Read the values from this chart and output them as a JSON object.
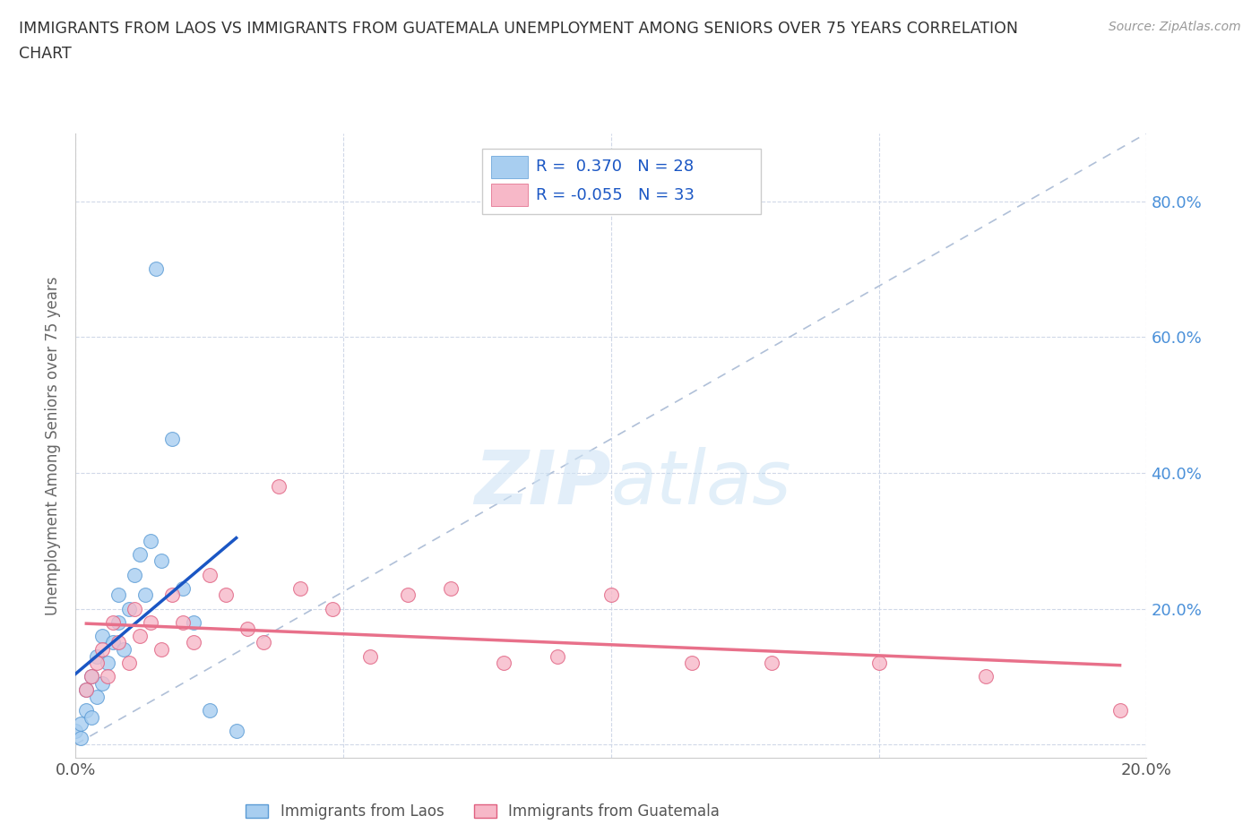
{
  "title_line1": "IMMIGRANTS FROM LAOS VS IMMIGRANTS FROM GUATEMALA UNEMPLOYMENT AMONG SENIORS OVER 75 YEARS CORRELATION",
  "title_line2": "CHART",
  "source": "Source: ZipAtlas.com",
  "ylabel": "Unemployment Among Seniors over 75 years",
  "xlim": [
    0.0,
    0.2
  ],
  "ylim": [
    -0.02,
    0.9
  ],
  "laos_color": "#a8cef0",
  "laos_color_dark": "#5b9bd5",
  "laos_line_color": "#1a56c4",
  "guatemala_color": "#f7b8c8",
  "guatemala_color_dark": "#e06080",
  "guatemala_line_color": "#e8708a",
  "laos_R": 0.37,
  "laos_N": 28,
  "guatemala_R": -0.055,
  "guatemala_N": 33,
  "laos_x": [
    0.0,
    0.001,
    0.001,
    0.002,
    0.002,
    0.003,
    0.003,
    0.004,
    0.004,
    0.005,
    0.005,
    0.006,
    0.007,
    0.008,
    0.008,
    0.009,
    0.01,
    0.011,
    0.012,
    0.013,
    0.014,
    0.015,
    0.016,
    0.018,
    0.02,
    0.022,
    0.025,
    0.03
  ],
  "laos_y": [
    0.02,
    0.01,
    0.03,
    0.05,
    0.08,
    0.04,
    0.1,
    0.07,
    0.13,
    0.09,
    0.16,
    0.12,
    0.15,
    0.18,
    0.22,
    0.14,
    0.2,
    0.25,
    0.28,
    0.22,
    0.3,
    0.7,
    0.27,
    0.45,
    0.23,
    0.18,
    0.05,
    0.02
  ],
  "guatemala_x": [
    0.002,
    0.003,
    0.004,
    0.005,
    0.006,
    0.007,
    0.008,
    0.01,
    0.011,
    0.012,
    0.014,
    0.016,
    0.018,
    0.02,
    0.022,
    0.025,
    0.028,
    0.032,
    0.035,
    0.038,
    0.042,
    0.048,
    0.055,
    0.062,
    0.07,
    0.08,
    0.09,
    0.1,
    0.115,
    0.13,
    0.15,
    0.17,
    0.195
  ],
  "guatemala_y": [
    0.08,
    0.1,
    0.12,
    0.14,
    0.1,
    0.18,
    0.15,
    0.12,
    0.2,
    0.16,
    0.18,
    0.14,
    0.22,
    0.18,
    0.15,
    0.25,
    0.22,
    0.17,
    0.15,
    0.38,
    0.23,
    0.2,
    0.13,
    0.22,
    0.23,
    0.12,
    0.13,
    0.22,
    0.12,
    0.12,
    0.12,
    0.1,
    0.05
  ],
  "watermark_zip": "ZIP",
  "watermark_atlas": "atlas",
  "background_color": "#ffffff",
  "grid_color": "#d0d8e8",
  "diag_color": "#b0c0d8"
}
